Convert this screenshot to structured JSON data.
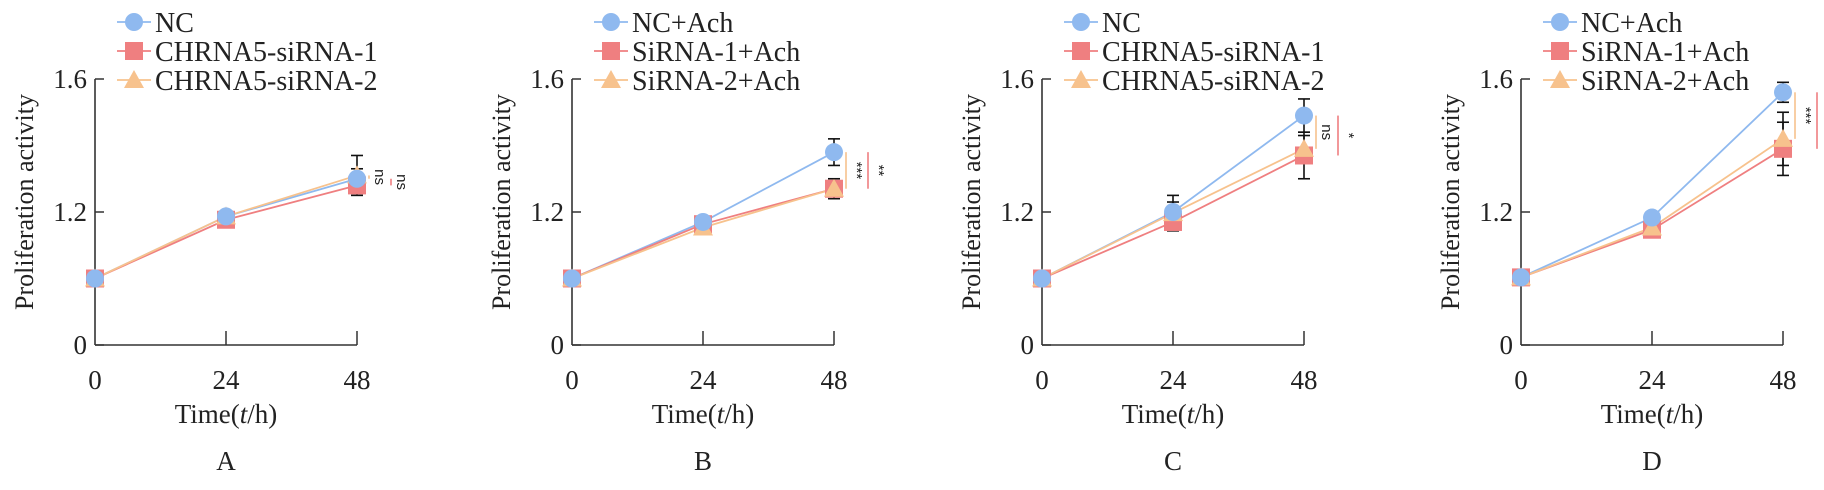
{
  "colors": {
    "series_1": "#8fb9ef",
    "series_2": "#ef7f80",
    "series_3": "#f7c28d",
    "axis": "#333333",
    "error_bar": "#111111"
  },
  "chart_data": [
    {
      "type": "line",
      "panel_label": "A",
      "xlabel_prefix": "Time(",
      "xlabel_italic": "t",
      "xlabel_suffix": "/h)",
      "ylabel": "Proliferation activity",
      "x": [
        0,
        24,
        48
      ],
      "x_ticks": [
        "0",
        "24",
        "48"
      ],
      "y_ticks": [
        "0",
        "1.2",
        "1.6"
      ],
      "y_axis_break": true,
      "ylim": [
        0,
        1.6
      ],
      "legend": "top",
      "series": [
        {
          "name": "NC",
          "marker": "circle",
          "values": [
            0.6,
            1.16,
            1.3
          ],
          "errors": [
            0,
            0.04,
            0.03
          ]
        },
        {
          "name": "CHRNA5-siRNA-1",
          "marker": "square",
          "values": [
            0.6,
            1.13,
            1.28
          ],
          "errors": [
            0,
            0.05,
            0.02
          ]
        },
        {
          "name": "CHRNA5-siRNA-2",
          "marker": "triangle",
          "values": [
            0.6,
            1.16,
            1.31
          ],
          "errors": [
            0,
            0.03,
            0.06
          ]
        }
      ],
      "annotations": [
        {
          "text": "ns",
          "color_series": 2
        },
        {
          "text": "ns",
          "color_series": 1
        }
      ]
    },
    {
      "type": "line",
      "panel_label": "B",
      "xlabel_prefix": "Time(",
      "xlabel_italic": "t",
      "xlabel_suffix": "/h)",
      "ylabel": "Proliferation activity",
      "x": [
        0,
        24,
        48
      ],
      "x_ticks": [
        "0",
        "24",
        "48"
      ],
      "y_ticks": [
        "0",
        "1.2",
        "1.6"
      ],
      "y_axis_break": true,
      "ylim": [
        0,
        1.6
      ],
      "legend": "top",
      "series": [
        {
          "name": "NC+Ach",
          "marker": "circle",
          "values": [
            0.6,
            1.11,
            1.38
          ],
          "errors": [
            0,
            0.04,
            0.04
          ]
        },
        {
          "name": "SiRNA-1+Ach",
          "marker": "square",
          "values": [
            0.6,
            1.09,
            1.27
          ],
          "errors": [
            0,
            0.06,
            0.03
          ]
        },
        {
          "name": "SiRNA-2+Ach",
          "marker": "triangle",
          "values": [
            0.6,
            1.06,
            1.27
          ],
          "errors": [
            0,
            0.03,
            0.02
          ]
        }
      ],
      "annotations": [
        {
          "text": "***",
          "color_series": 2
        },
        {
          "text": "**",
          "color_series": 1
        }
      ]
    },
    {
      "type": "line",
      "panel_label": "C",
      "xlabel_prefix": "Time(",
      "xlabel_italic": "t",
      "xlabel_suffix": "/h)",
      "ylabel": "Proliferation activity",
      "x": [
        0,
        24,
        48
      ],
      "x_ticks": [
        "0",
        "24",
        "48"
      ],
      "y_ticks": [
        "0",
        "1.2",
        "1.6"
      ],
      "y_axis_break": true,
      "ylim": [
        0,
        1.6
      ],
      "legend": "top",
      "series": [
        {
          "name": "NC",
          "marker": "circle",
          "values": [
            0.6,
            1.2,
            1.49
          ],
          "errors": [
            0,
            0.05,
            0.05
          ]
        },
        {
          "name": "CHRNA5-siRNA-1",
          "marker": "square",
          "values": [
            0.6,
            1.11,
            1.37
          ],
          "errors": [
            0,
            0.08,
            0.07
          ]
        },
        {
          "name": "CHRNA5-siRNA-2",
          "marker": "triangle",
          "values": [
            0.6,
            1.19,
            1.39
          ],
          "errors": [
            0,
            0.04,
            0.04
          ]
        }
      ],
      "annotations": [
        {
          "text": "ns",
          "color_series": 2
        },
        {
          "text": "*",
          "color_series": 1
        }
      ]
    },
    {
      "type": "line",
      "panel_label": "D",
      "xlabel_prefix": "Time(",
      "xlabel_italic": "t",
      "xlabel_suffix": "/h)",
      "ylabel": "Proliferation activity",
      "x": [
        0,
        24,
        48
      ],
      "x_ticks": [
        "0",
        "24",
        "48"
      ],
      "y_ticks": [
        "0",
        "1.2",
        "1.6"
      ],
      "y_axis_break": true,
      "ylim": [
        0,
        1.6
      ],
      "legend": "top",
      "series": [
        {
          "name": "NC+Ach",
          "marker": "circle",
          "values": [
            0.61,
            1.15,
            1.56
          ],
          "errors": [
            0,
            0.03,
            0.03
          ]
        },
        {
          "name": "SiRNA-1+Ach",
          "marker": "square",
          "values": [
            0.61,
            1.04,
            1.39
          ],
          "errors": [
            0,
            0.02,
            0.08
          ]
        },
        {
          "name": "SiRNA-2+Ach",
          "marker": "triangle",
          "values": [
            0.61,
            1.06,
            1.42
          ],
          "errors": [
            0,
            0.04,
            0.08
          ]
        }
      ],
      "annotations": [
        {
          "text": "***",
          "color_series": 2
        },
        {
          "text": "***",
          "color_series": 1
        }
      ]
    }
  ]
}
